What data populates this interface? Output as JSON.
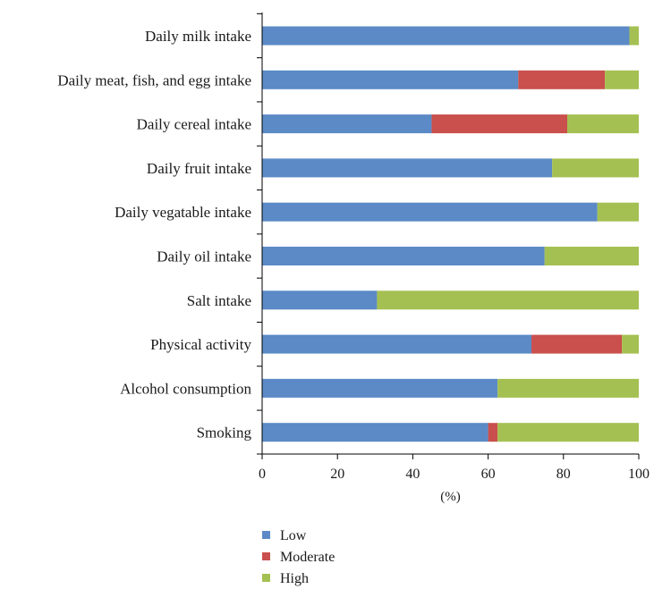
{
  "chart_data": {
    "type": "bar",
    "orientation": "horizontal",
    "stacked": true,
    "categories": [
      "Daily milk intake",
      "Daily meat, fish, and egg intake",
      "Daily cereal intake",
      "Daily fruit intake",
      "Daily vegatable intake",
      "Daily oil intake",
      "Salt intake",
      "Physical activity",
      "Alcohol consumption",
      "Smoking"
    ],
    "series": [
      {
        "name": "Low",
        "color": "#5b8ac6",
        "values": [
          97.5,
          68,
          45,
          77,
          89,
          75,
          30.5,
          71.5,
          62.5,
          60
        ]
      },
      {
        "name": "Moderate",
        "color": "#c9504c",
        "values": [
          0,
          23,
          36,
          0,
          0,
          0,
          0,
          24,
          0,
          2.5
        ]
      },
      {
        "name": "High",
        "color": "#a5c052",
        "values": [
          2.5,
          9,
          19,
          23,
          11,
          25,
          69.5,
          4.5,
          37.5,
          37.5
        ]
      }
    ],
    "xlabel": "(%)",
    "ylabel": "",
    "xlim": [
      0,
      100
    ],
    "xticks": [
      0,
      20,
      40,
      60,
      80,
      100
    ],
    "grid": false,
    "legend_position": "bottom"
  }
}
